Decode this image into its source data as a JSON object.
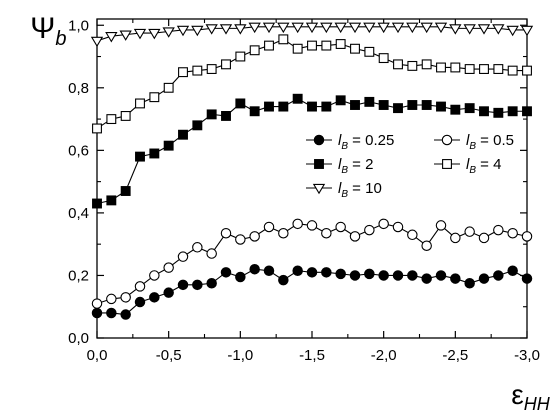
{
  "chart_data": {
    "type": "line",
    "x_axis": {
      "label": {
        "symbol": "ε",
        "sub": "HH"
      },
      "lim": [
        0.0,
        -3.0
      ],
      "ticks": [
        0.0,
        -0.5,
        -1.0,
        -1.5,
        -2.0,
        -2.5,
        -3.0
      ],
      "tick_labels": [
        "0,0",
        "-0,5",
        "-1,0",
        "-1,5",
        "-2,0",
        "-2,5",
        "-3,0"
      ]
    },
    "y_axis": {
      "label": {
        "symbol": "Ψ",
        "sub": "b"
      },
      "lim": [
        0.0,
        1.02
      ],
      "ticks": [
        0.0,
        0.2,
        0.4,
        0.6,
        0.8,
        1.0
      ],
      "tick_labels": [
        "0,0",
        "0,2",
        "0,4",
        "0,6",
        "0,8",
        "1,0"
      ]
    },
    "grid": false,
    "legend": {
      "placement": "center-right"
    },
    "x": [
      0.0,
      -0.1,
      -0.2,
      -0.3,
      -0.4,
      -0.5,
      -0.6,
      -0.7,
      -0.8,
      -0.9,
      -1.0,
      -1.1,
      -1.2,
      -1.3,
      -1.4,
      -1.5,
      -1.6,
      -1.7,
      -1.8,
      -1.9,
      -2.0,
      -2.1,
      -2.2,
      -2.3,
      -2.4,
      -2.5,
      -2.6,
      -2.7,
      -2.8,
      -2.9,
      -3.0
    ],
    "series": [
      {
        "label": {
          "var": "l",
          "sub": "B",
          "eq": " = 0.25"
        },
        "marker": "filled-circle",
        "color": "#000000",
        "values": [
          0.08,
          0.08,
          0.075,
          0.115,
          0.13,
          0.145,
          0.17,
          0.17,
          0.175,
          0.21,
          0.195,
          0.22,
          0.215,
          0.185,
          0.215,
          0.21,
          0.21,
          0.205,
          0.2,
          0.205,
          0.2,
          0.2,
          0.2,
          0.19,
          0.2,
          0.19,
          0.175,
          0.19,
          0.2,
          0.215,
          0.19
        ]
      },
      {
        "label": {
          "var": "l",
          "sub": "B",
          "eq": " = 0.5"
        },
        "marker": "open-circle",
        "color": "#000000",
        "values": [
          0.11,
          0.125,
          0.13,
          0.165,
          0.2,
          0.225,
          0.26,
          0.29,
          0.27,
          0.335,
          0.315,
          0.325,
          0.355,
          0.335,
          0.365,
          0.36,
          0.335,
          0.355,
          0.325,
          0.345,
          0.365,
          0.355,
          0.33,
          0.295,
          0.36,
          0.32,
          0.34,
          0.32,
          0.345,
          0.335,
          0.325
        ]
      },
      {
        "label": {
          "var": "l",
          "sub": "B",
          "eq": " = 2"
        },
        "marker": "filled-square",
        "color": "#000000",
        "values": [
          0.43,
          0.44,
          0.47,
          0.58,
          0.59,
          0.615,
          0.65,
          0.68,
          0.715,
          0.71,
          0.75,
          0.725,
          0.74,
          0.74,
          0.765,
          0.74,
          0.74,
          0.76,
          0.745,
          0.755,
          0.745,
          0.735,
          0.745,
          0.745,
          0.74,
          0.73,
          0.735,
          0.725,
          0.72,
          0.725,
          0.725
        ]
      },
      {
        "label": {
          "var": "l",
          "sub": "B",
          "eq": " = 4"
        },
        "marker": "open-square",
        "color": "#000000",
        "values": [
          0.67,
          0.7,
          0.71,
          0.75,
          0.77,
          0.8,
          0.85,
          0.855,
          0.86,
          0.875,
          0.9,
          0.92,
          0.935,
          0.955,
          0.925,
          0.935,
          0.935,
          0.94,
          0.925,
          0.915,
          0.895,
          0.875,
          0.87,
          0.875,
          0.865,
          0.865,
          0.86,
          0.86,
          0.86,
          0.855,
          0.855
        ]
      },
      {
        "label": {
          "var": "l",
          "sub": "B",
          "eq": " = 10"
        },
        "marker": "open-triangle-down",
        "color": "#000000",
        "values": [
          0.95,
          0.965,
          0.97,
          0.975,
          0.975,
          0.98,
          0.985,
          0.985,
          0.99,
          0.99,
          0.99,
          0.995,
          0.995,
          0.995,
          0.995,
          0.995,
          0.995,
          0.995,
          0.995,
          0.995,
          0.995,
          0.995,
          0.995,
          0.995,
          0.995,
          0.99,
          0.99,
          0.99,
          0.99,
          0.985,
          0.985
        ]
      }
    ]
  }
}
